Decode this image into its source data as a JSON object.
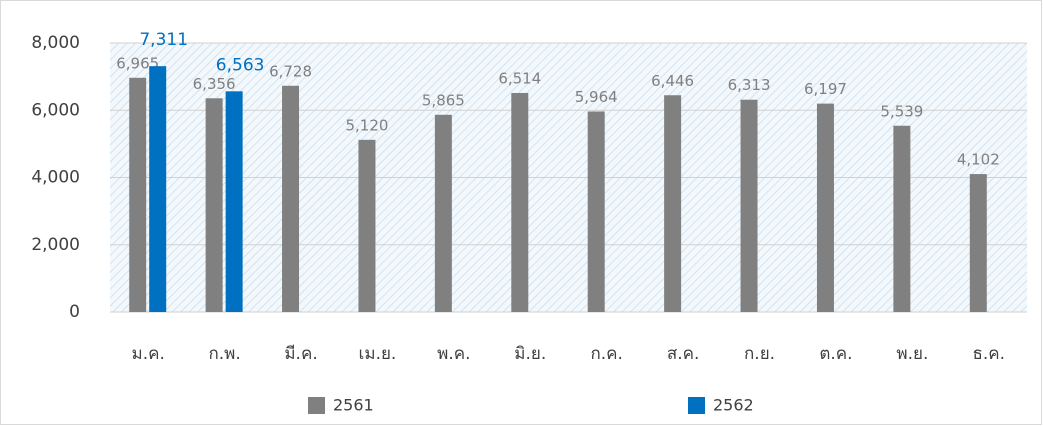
{
  "chart_data": {
    "type": "bar",
    "categories": [
      "ม.ค.",
      "ก.พ.",
      "มี.ค.",
      "เม.ย.",
      "พ.ค.",
      "มิ.ย.",
      "ก.ค.",
      "ส.ค.",
      "ก.ย.",
      "ต.ค.",
      "พ.ย.",
      "ธ.ค."
    ],
    "series": [
      {
        "name": "2561",
        "color": "#808080",
        "values": [
          6965,
          6356,
          6728,
          5120,
          5865,
          6514,
          5964,
          6446,
          6313,
          6197,
          5539,
          4102
        ],
        "value_labels": [
          "6,965",
          "6,356",
          "6,728",
          "5,120",
          "5,865",
          "6,514",
          "5,964",
          "6,446",
          "6,313",
          "6,197",
          "5,539",
          "4,102"
        ]
      },
      {
        "name": "2562",
        "color": "#0070c0",
        "values": [
          7311,
          6563,
          null,
          null,
          null,
          null,
          null,
          null,
          null,
          null,
          null,
          null
        ],
        "value_labels": [
          "7,311",
          "6,563",
          null,
          null,
          null,
          null,
          null,
          null,
          null,
          null,
          null,
          null
        ]
      }
    ],
    "ylim": [
      0,
      8000
    ],
    "yticks": [
      0,
      {
        "value": 2000,
        "label": "2,000"
      },
      {
        "value": 4000,
        "label": "4,000"
      },
      {
        "value": 6000,
        "label": "6,000"
      },
      {
        "value": 8000,
        "label": "8,000"
      }
    ],
    "grid": true,
    "legend": "bottom"
  }
}
